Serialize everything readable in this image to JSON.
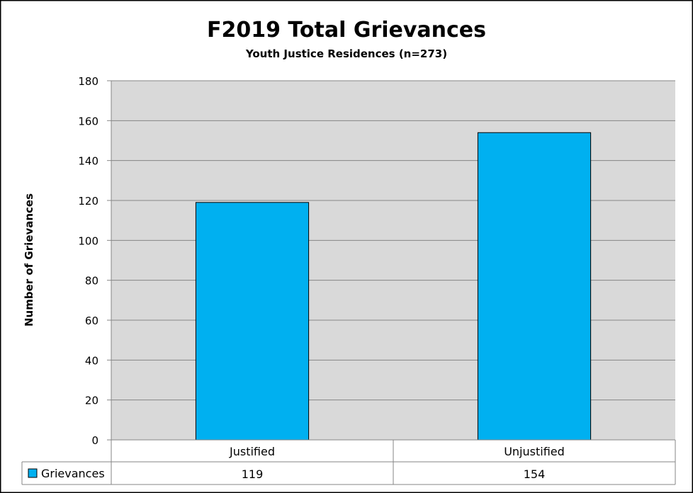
{
  "chart_data": {
    "type": "bar",
    "title": "F2019 Total Grievances",
    "subtitle": "Youth Justice Residences (n=273)",
    "ylabel": "Number of Grievances",
    "xlabel": "",
    "ylim": [
      0,
      180
    ],
    "yticks": [
      0,
      20,
      40,
      60,
      80,
      100,
      120,
      140,
      160,
      180
    ],
    "grid": true,
    "categories": [
      "Justified",
      "Unjustified"
    ],
    "series": [
      {
        "name": "Grievances",
        "values": [
          119,
          154
        ],
        "color": "#00B0F0"
      }
    ],
    "data_table": true,
    "plot_background": "#D9D9D9"
  }
}
